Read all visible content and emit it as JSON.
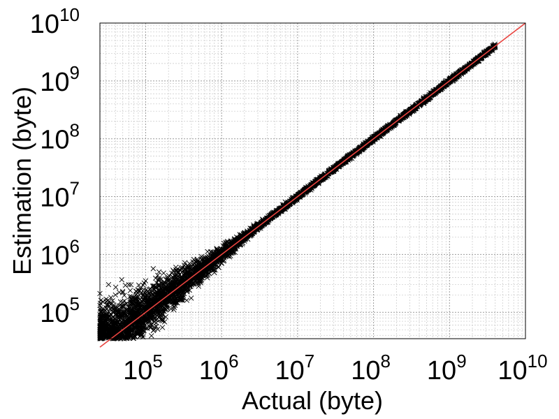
{
  "chart_data": {
    "type": "scatter",
    "xlabel": "Actual (byte)",
    "ylabel": "Estimation (byte)",
    "x_scale": "log",
    "y_scale": "log",
    "xlim": [
      25000,
      10000000000
    ],
    "ylim": [
      35000,
      10000000000
    ],
    "grid": true,
    "tick_base": "10",
    "x_ticks": [
      {
        "value": 100000,
        "exp": "5"
      },
      {
        "value": 1000000,
        "exp": "6"
      },
      {
        "value": 10000000,
        "exp": "7"
      },
      {
        "value": 100000000,
        "exp": "8"
      },
      {
        "value": 1000000000,
        "exp": "9"
      },
      {
        "value": 10000000000,
        "exp": "10"
      }
    ],
    "y_ticks": [
      {
        "value": 100000,
        "exp": "5"
      },
      {
        "value": 1000000,
        "exp": "6"
      },
      {
        "value": 10000000,
        "exp": "7"
      },
      {
        "value": 100000000,
        "exp": "8"
      },
      {
        "value": 1000000000,
        "exp": "9"
      },
      {
        "value": 10000000000,
        "exp": "10"
      }
    ],
    "series": [
      {
        "marker": "x",
        "color": "#000000",
        "x_range": [
          25000,
          4000000000
        ],
        "points": [
          [
            30000,
            120000
          ],
          [
            35000,
            40000
          ],
          [
            40000,
            200000
          ],
          [
            50000,
            150000
          ],
          [
            60000,
            300000
          ],
          [
            80000,
            45000
          ],
          [
            100000,
            350000
          ],
          [
            120000,
            80000
          ],
          [
            150000,
            500000
          ],
          [
            200000,
            150000
          ],
          [
            250000,
            600000
          ],
          [
            300000,
            180000
          ],
          [
            400000,
            550000
          ],
          [
            500000,
            350000
          ],
          [
            700000,
            900000
          ],
          [
            1000000,
            700000
          ],
          [
            1500000,
            1800000
          ],
          [
            2000000,
            1700000
          ],
          [
            3000000,
            3300000
          ],
          [
            5000000,
            5100000
          ],
          [
            10000000,
            10000000
          ],
          [
            30000000,
            30000000
          ],
          [
            100000000,
            100000000
          ],
          [
            300000000,
            300000000
          ],
          [
            1000000000,
            1000000000
          ],
          [
            2000000000,
            2000000000
          ],
          [
            4000000000,
            4100000000
          ]
        ]
      },
      {
        "type": "line",
        "color": "#e8433f",
        "x": [
          25000,
          10000000000
        ],
        "y": [
          25000,
          10000000000
        ]
      }
    ]
  }
}
